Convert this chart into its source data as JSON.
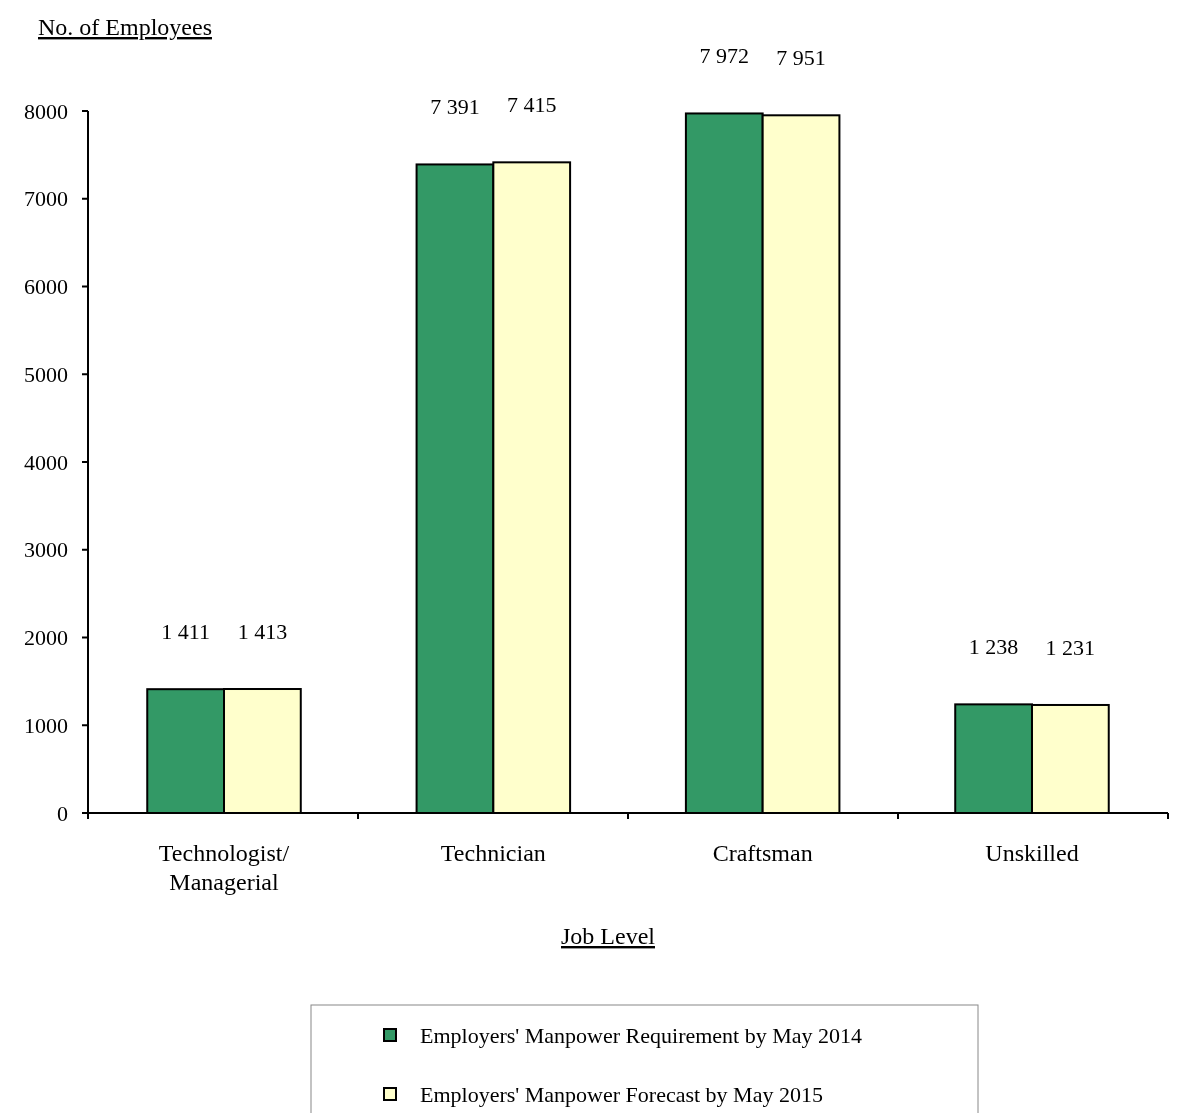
{
  "chart_data": {
    "type": "bar",
    "xlabel": "Job Level",
    "ylabel": "No. of Employees",
    "categories": [
      "Technologist/\nManagerial",
      "Technician",
      "Craftsman",
      "Unskilled"
    ],
    "series": [
      {
        "name": "Employers' Manpower Requirement by May 2014",
        "color": "#339966",
        "values": [
          1411,
          7391,
          7972,
          1238
        ],
        "value_labels": [
          "1 411",
          "7 391",
          "7 972",
          "1 238"
        ]
      },
      {
        "name": "Employers' Manpower Forecast by May 2015",
        "color": "#ffffcc",
        "values": [
          1413,
          7415,
          7951,
          1231
        ],
        "value_labels": [
          "1 413",
          "7 415",
          "7 951",
          "1 231"
        ]
      }
    ],
    "ylim": [
      0,
      8000
    ],
    "yticks": [
      0,
      1000,
      2000,
      3000,
      4000,
      5000,
      6000,
      7000,
      8000
    ],
    "grid": false,
    "legend": "bottom"
  }
}
